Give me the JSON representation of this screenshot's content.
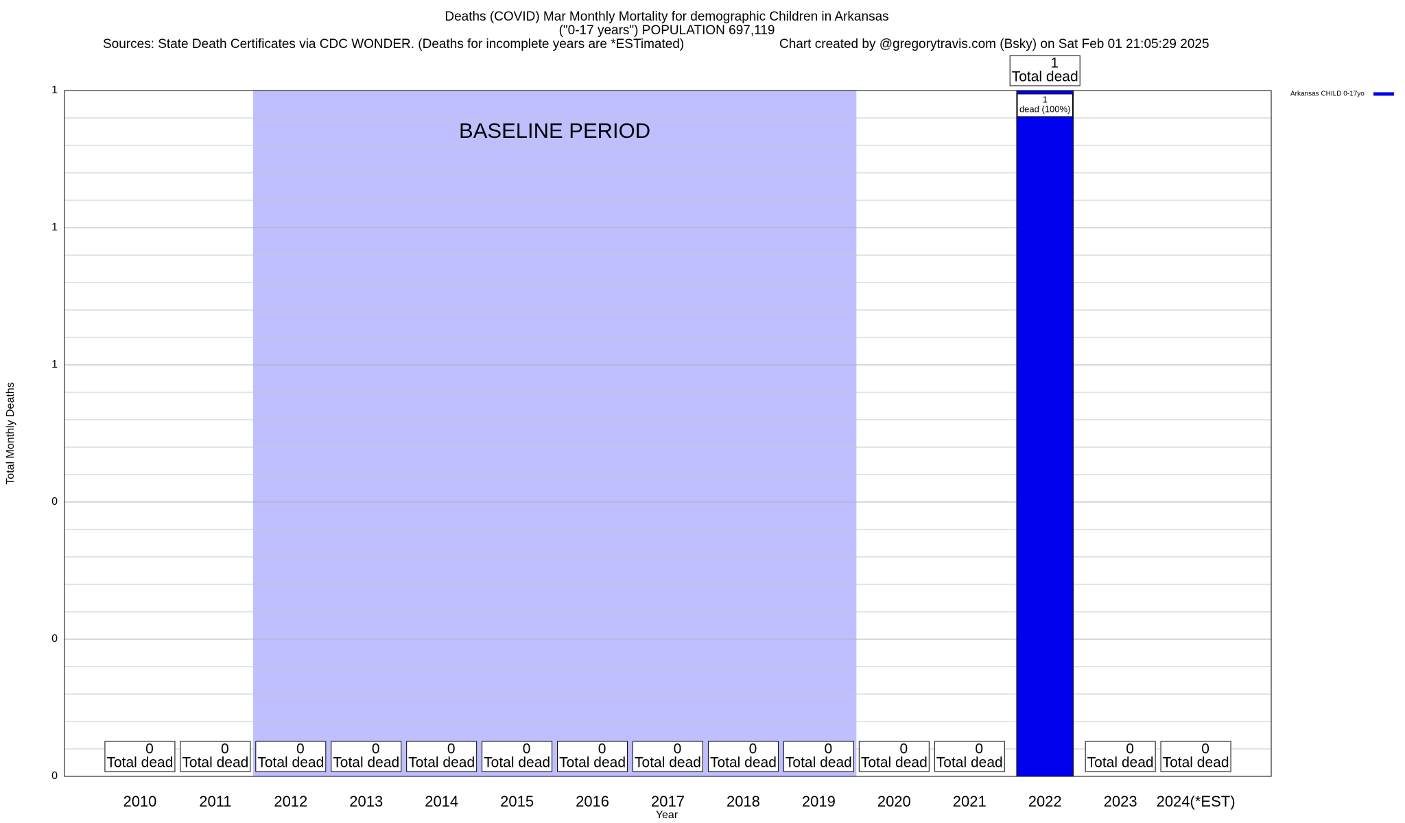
{
  "chart_data": {
    "type": "bar",
    "title": "Deaths (COVID) Mar Monthly Mortality for demographic Children in Arkansas",
    "subtitle": "(\"0-17 years\") POPULATION 697,119",
    "sources": "Sources: State Death Certificates via CDC WONDER. (Deaths for incomplete years are *ESTimated)",
    "credit": "Chart created by @gregorytravis.com (Bsky) on Sat Feb 01 21:05:29 2025",
    "xlabel": "Year",
    "ylabel": "Total Monthly Deaths",
    "categories": [
      "2010",
      "2011",
      "2012",
      "2013",
      "2014",
      "2015",
      "2016",
      "2017",
      "2018",
      "2019",
      "2020",
      "2021",
      "2022",
      "2023",
      "2024(*EST)"
    ],
    "series": [
      {
        "name": "Arkansas CHILD 0-17yo",
        "color": "#0000ee",
        "values": [
          0,
          0,
          0,
          0,
          0,
          0,
          0,
          0,
          0,
          0,
          0,
          0,
          1,
          0,
          0
        ]
      }
    ],
    "data_label_text": "Total dead",
    "inner_labels": [
      null,
      null,
      null,
      null,
      null,
      null,
      null,
      null,
      null,
      null,
      null,
      null,
      "dead (100%)",
      null,
      null
    ],
    "baseline": {
      "label": "BASELINE PERIOD",
      "start": "2012",
      "end": "2019",
      "color": "#bfbfff"
    },
    "ylim": [
      0,
      1
    ],
    "yticks": [
      0,
      {
        "value": 0.2,
        "label": "0"
      },
      {
        "value": 0.4,
        "label": "0"
      },
      {
        "value": 0.6,
        "label": "1"
      },
      {
        "value": 0.8,
        "label": "1"
      },
      1
    ],
    "y_minor_ticks": [
      0.04,
      0.08,
      0.12,
      0.16,
      0.24,
      0.28,
      0.32,
      0.36,
      0.44,
      0.48,
      0.52,
      0.56,
      0.64,
      0.68,
      0.72,
      0.76,
      0.84,
      0.88,
      0.92,
      0.96
    ],
    "grid": true,
    "legend": "top right outside"
  }
}
